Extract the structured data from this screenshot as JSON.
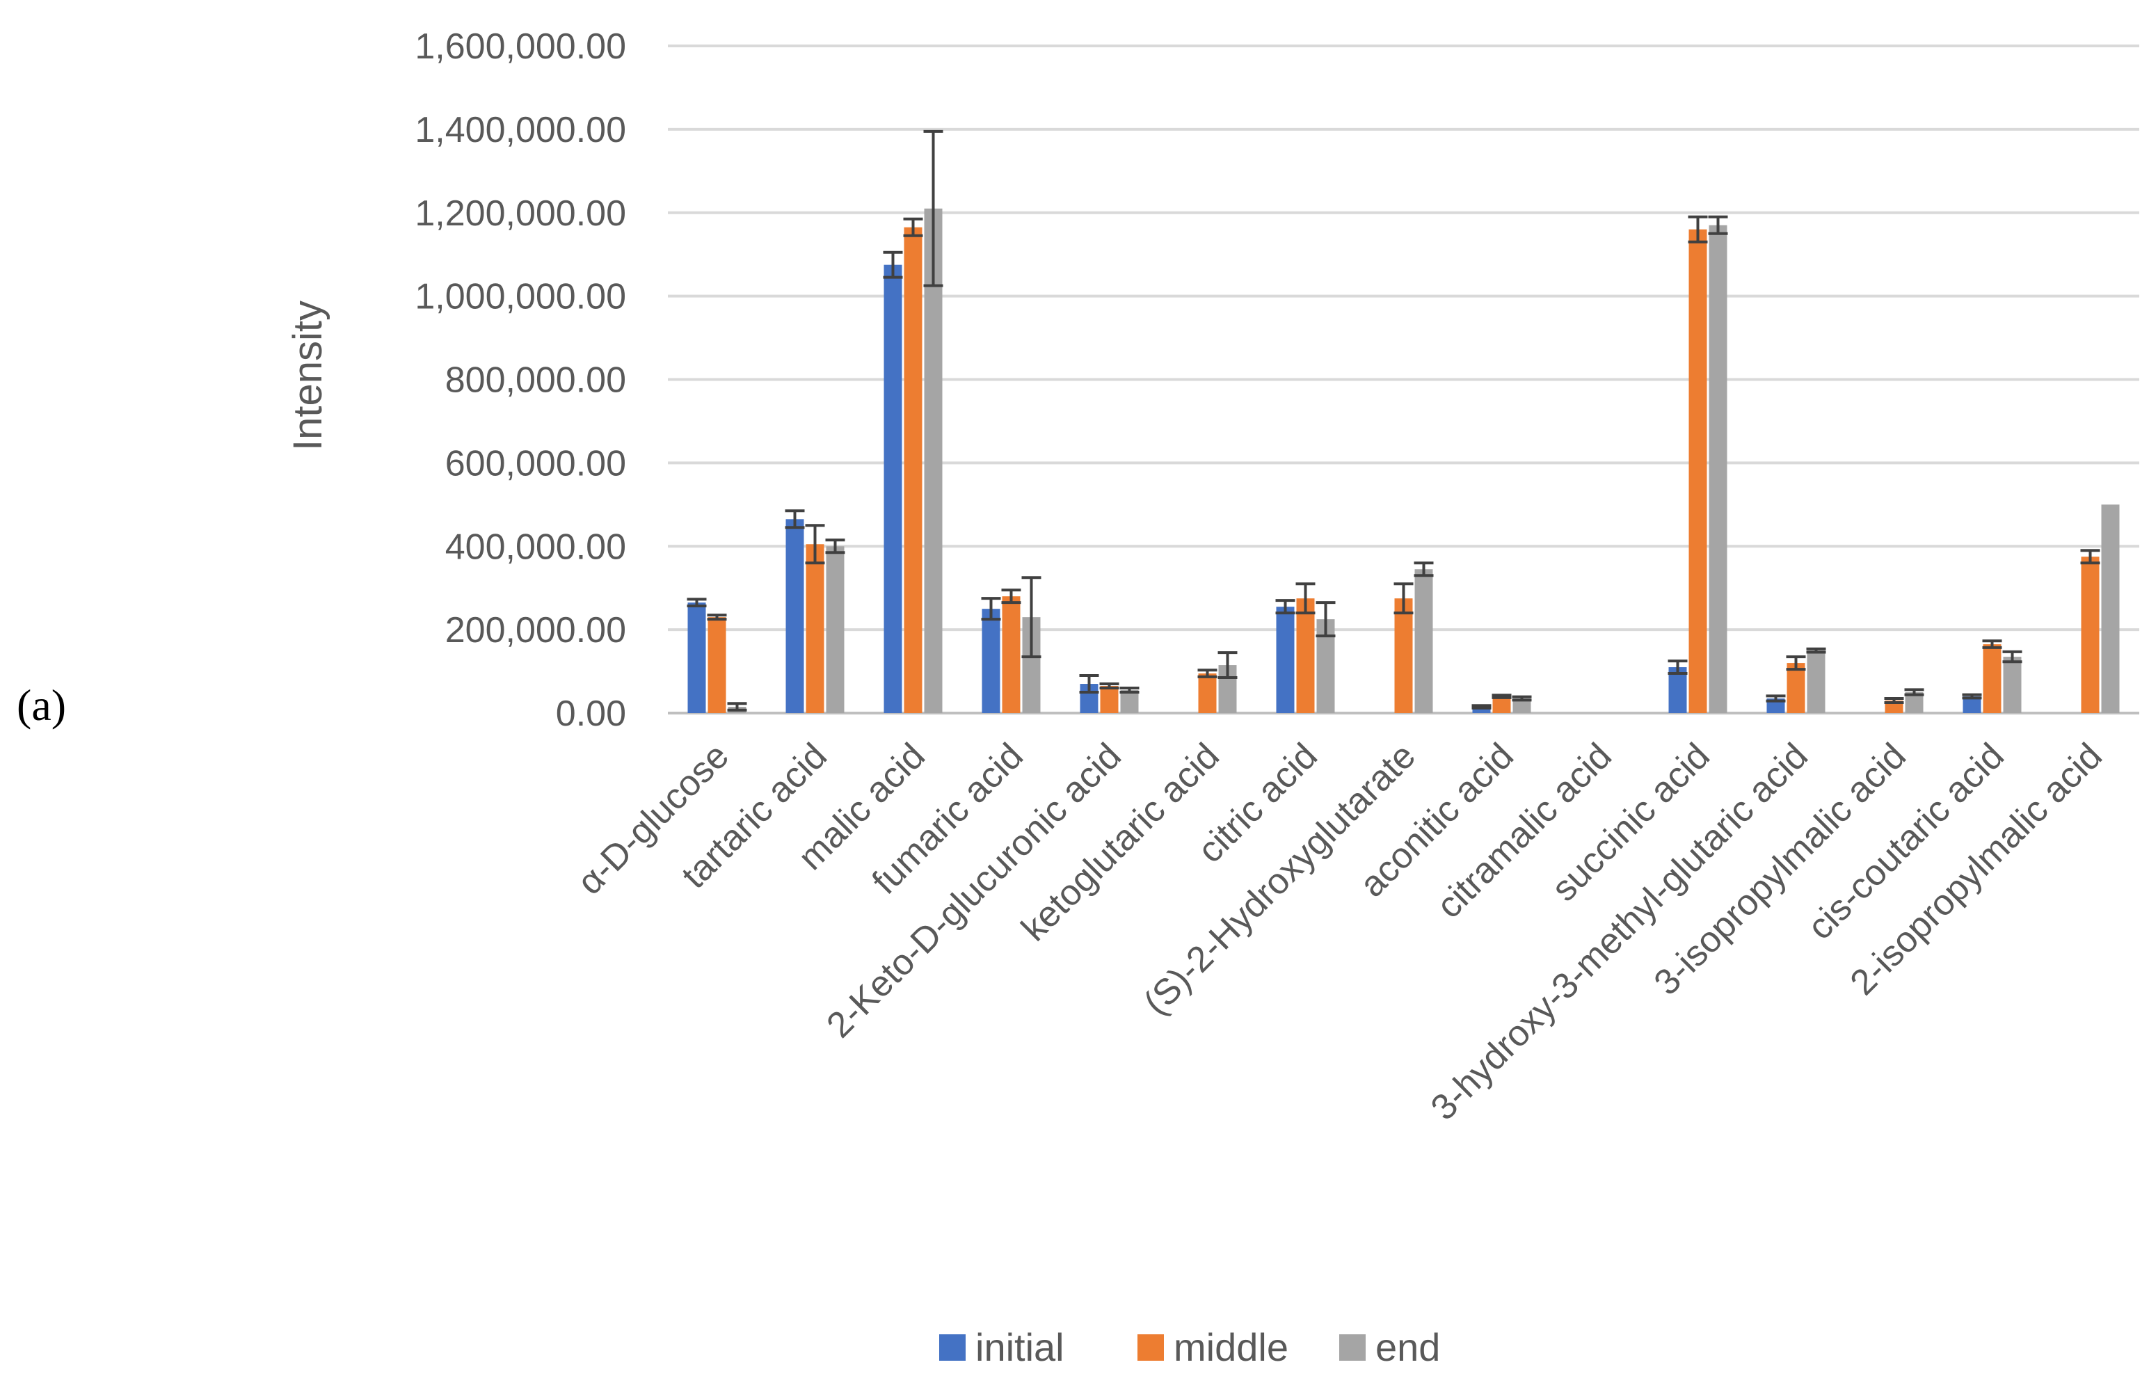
{
  "panel_label": "(a)",
  "chart_data": {
    "type": "bar",
    "title": "",
    "xlabel": "",
    "ylabel": "Intensity",
    "ylim": [
      0,
      1600000
    ],
    "yticks": [
      0,
      200000,
      400000,
      600000,
      800000,
      1000000,
      1200000,
      1400000,
      1600000
    ],
    "ytick_labels": [
      "0.00",
      "200,000.00",
      "400,000.00",
      "600,000.00",
      "800,000.00",
      "1,000,000.00",
      "1,200,000.00",
      "1,400,000.00",
      "1,600,000.00"
    ],
    "grid": true,
    "legend_position": "bottom",
    "categories": [
      "α-D-glucose",
      "tartaric acid",
      "malic acid",
      "fumaric acid",
      "2-Keto-D-glucuronic acid",
      "ketoglutaric acid",
      "citric acid",
      "(S)-2-Hydroxyglutarate",
      "aconitic acid",
      "citramalic acid",
      "succinic acid",
      "3-hydroxy-3-methyl-glutaric acid",
      "3-isopropylmalic  acid",
      "cis-coutaric acid",
      "2-isopropylmalic acid"
    ],
    "series": [
      {
        "name": "initial",
        "color": "#4472C4",
        "values": [
          265000,
          465000,
          1075000,
          250000,
          70000,
          0,
          255000,
          0,
          15000,
          0,
          110000,
          35000,
          0,
          40000,
          0
        ],
        "errors": [
          8000,
          20000,
          30000,
          25000,
          20000,
          0,
          15000,
          0,
          3000,
          0,
          15000,
          6000,
          0,
          4000,
          0
        ]
      },
      {
        "name": "middle",
        "color": "#ED7D31",
        "values": [
          230000,
          405000,
          1165000,
          280000,
          65000,
          95000,
          275000,
          275000,
          40000,
          0,
          1160000,
          120000,
          30000,
          165000,
          375000
        ],
        "errors": [
          5000,
          45000,
          20000,
          15000,
          5000,
          8000,
          35000,
          35000,
          3000,
          0,
          30000,
          15000,
          5000,
          8000,
          15000
        ]
      },
      {
        "name": "end",
        "color": "#A5A5A5",
        "values": [
          15000,
          400000,
          1210000,
          230000,
          55000,
          115000,
          225000,
          345000,
          35000,
          0,
          1170000,
          150000,
          50000,
          135000,
          500000
        ],
        "errors": [
          8000,
          15000,
          185000,
          95000,
          5000,
          30000,
          40000,
          15000,
          4000,
          0,
          20000,
          4000,
          6000,
          12000,
          0
        ]
      }
    ]
  }
}
